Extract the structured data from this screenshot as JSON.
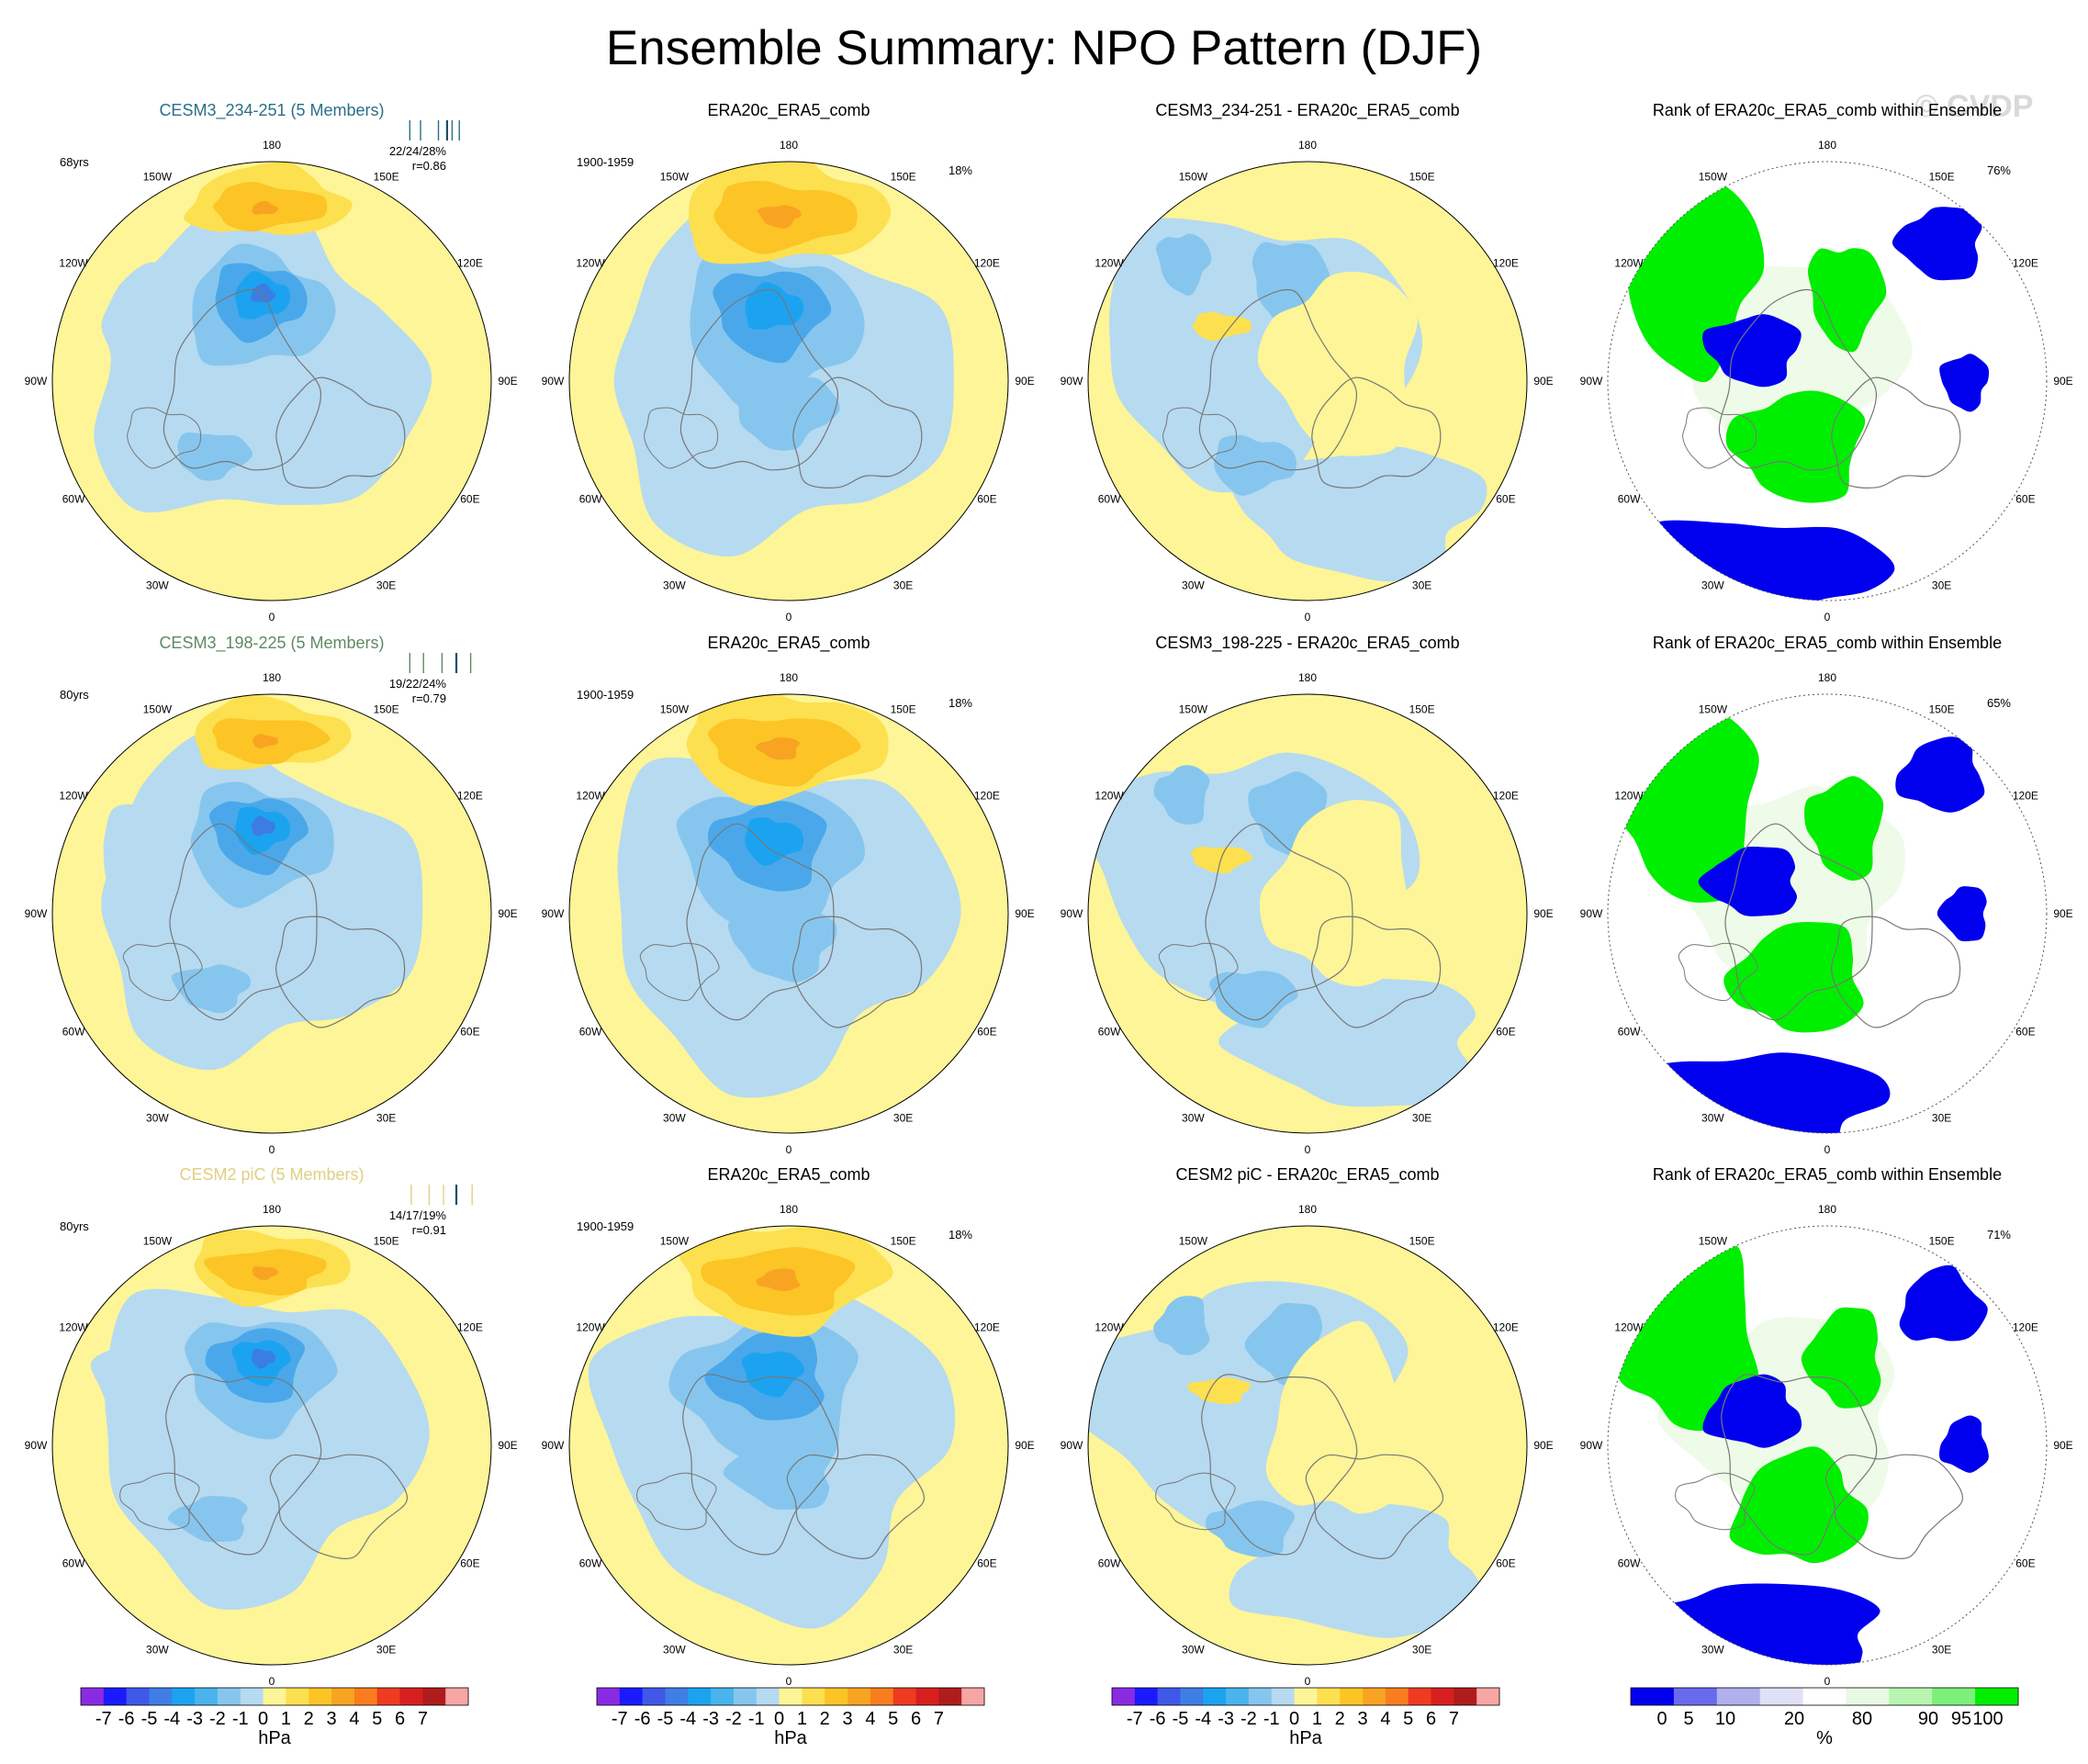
{
  "title": "Ensemble Summary: NPO Pattern (DJF)",
  "watermark": "© CVDP",
  "colors": {
    "blue_light": "#b6daf0",
    "blue_mid": "#86c6ee",
    "blue_dark": "#4aa8ea",
    "blue_deep": "#1ca3f0",
    "blue_core": "#3b7de0",
    "yellow_light": "#fdf597",
    "yellow_mid": "#fde04f",
    "yellow_dark": "#fcc425",
    "orange": "#f8a322",
    "rank_blue": "#0000ee",
    "rank_green": "#00ee00",
    "rank_pale": "#eefbe8",
    "coast": "#777777"
  },
  "lon_labels": [
    "180",
    "150E",
    "120E",
    "90E",
    "60E",
    "30E",
    "0",
    "30W",
    "60W",
    "90W",
    "120W",
    "150W"
  ],
  "chart_data": [
    {
      "row": 1,
      "type": "heatmap",
      "projection": "north polar stereographic",
      "panels": [
        {
          "title": "CESM3_234-251 (5 Members)",
          "title_color": "#2a6f88",
          "left_label": "68yrs",
          "right_label": "22/24/28%",
          "right_label2": "r=0.86",
          "bar_ticks": [
            0.03,
            0.18,
            0.43,
            0.55,
            0.62,
            0.72
          ],
          "bar_dark": 3,
          "kind": "ens"
        },
        {
          "title": "ERA20c_ERA5_comb",
          "title_color": "#000000",
          "left_label": "1900-1959",
          "right_label": "18%",
          "right_label2": "",
          "kind": "obs"
        },
        {
          "title": "CESM3_234-251 - ERA20c_ERA5_comb",
          "title_color": "#000000",
          "left_label": "",
          "right_label": "",
          "right_label2": "",
          "kind": "diff"
        },
        {
          "title": "Rank of ERA20c_ERA5_comb within Ensemble",
          "title_color": "#000000",
          "left_label": "",
          "right_label": "76%",
          "right_label2": "",
          "kind": "rank"
        }
      ]
    },
    {
      "row": 2,
      "type": "heatmap",
      "projection": "north polar stereographic",
      "panels": [
        {
          "title": "CESM3_198-225 (5 Members)",
          "title_color": "#5e8a62",
          "left_label": "80yrs",
          "right_label": "19/22/24%",
          "right_label2": "r=0.79",
          "bar_ticks": [
            0.03,
            0.22,
            0.48,
            0.68,
            0.88
          ],
          "bar_dark": 3,
          "kind": "ens"
        },
        {
          "title": "ERA20c_ERA5_comb",
          "title_color": "#000000",
          "left_label": "1900-1959",
          "right_label": "18%",
          "right_label2": "",
          "kind": "obs"
        },
        {
          "title": "CESM3_198-225 - ERA20c_ERA5_comb",
          "title_color": "#000000",
          "left_label": "",
          "right_label": "",
          "right_label2": "",
          "kind": "diff"
        },
        {
          "title": "Rank of ERA20c_ERA5_comb within Ensemble",
          "title_color": "#000000",
          "left_label": "",
          "right_label": "65%",
          "right_label2": "",
          "kind": "rank"
        }
      ]
    },
    {
      "row": 3,
      "type": "heatmap",
      "projection": "north polar stereographic",
      "panels": [
        {
          "title": "CESM2 piC (5 Members)",
          "title_color": "#e0cf82",
          "left_label": "80yrs",
          "right_label": "14/17/19%",
          "right_label2": "r=0.91",
          "bar_ticks": [
            0.05,
            0.3,
            0.5,
            0.68,
            0.9
          ],
          "bar_dark": 3,
          "kind": "ens"
        },
        {
          "title": "ERA20c_ERA5_comb",
          "title_color": "#000000",
          "left_label": "1900-1959",
          "right_label": "18%",
          "right_label2": "",
          "kind": "obs"
        },
        {
          "title": "CESM2 piC - ERA20c_ERA5_comb",
          "title_color": "#000000",
          "left_label": "",
          "right_label": "",
          "right_label2": "",
          "kind": "diff"
        },
        {
          "title": "Rank of ERA20c_ERA5_comb within Ensemble",
          "title_color": "#000000",
          "left_label": "",
          "right_label": "71%",
          "right_label2": "",
          "kind": "rank"
        }
      ]
    },
    {
      "type": "colorbar",
      "units": "hPa",
      "levels": [
        "-7",
        "-6",
        "-5",
        "-4",
        "-3",
        "-2",
        "-1",
        "0",
        "1",
        "2",
        "3",
        "4",
        "5",
        "6",
        "7"
      ],
      "colors": [
        "#8a2be2",
        "#1a1aff",
        "#3f58e8",
        "#3f7ee6",
        "#1ca3f0",
        "#4ab4ee",
        "#86c6ee",
        "#b6daf0",
        "#fdf597",
        "#fde04f",
        "#fcc425",
        "#f8a322",
        "#f97d1e",
        "#ef3b20",
        "#d81f1f",
        "#b01c1c",
        "#f7a5a5"
      ]
    },
    {
      "type": "colorbar",
      "units": "%",
      "levels": [
        "0",
        "5",
        "10",
        "20",
        "80",
        "90",
        "95",
        "100"
      ],
      "colors": [
        "#0000ee",
        "#6a6aee",
        "#b0b0ee",
        "#e0e0f6",
        "#ffffff",
        "#e8fae4",
        "#b7f5b0",
        "#7cf07a",
        "#00ee00"
      ]
    }
  ]
}
